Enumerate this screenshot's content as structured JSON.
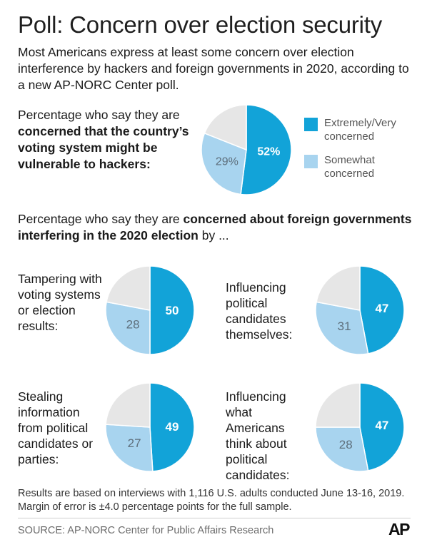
{
  "title": "Poll: Concern over election security",
  "subtitle": "Most Americans express at least some concern over election interference by hackers and foreign governments in 2020, according to a new AP-NORC Center poll.",
  "question1": {
    "intro": "Percentage who say they are ",
    "bold": "concerned that the country’s voting system might be vulnerable to hackers:"
  },
  "legend": [
    {
      "label": "Extremely/Very concerned",
      "color": "#12a3d8"
    },
    {
      "label": "Somewhat concerned",
      "color": "#a8d4ef"
    }
  ],
  "section2": {
    "intro": "Percentage who say they are ",
    "bold": "concerned about foreign governments interfering in the 2020 election",
    "suffix": " by ..."
  },
  "sublabels": [
    "Tampering with voting systems or election results:",
    "Influencing political candidates themselves:",
    "Stealing information from political candidates or parties:",
    "Influencing what Americans think about political candidates:"
  ],
  "chart_data": [
    {
      "type": "pie",
      "title": "Concerned that the country’s voting system might be vulnerable to hackers",
      "series": [
        {
          "name": "Extremely/Very concerned",
          "value": 52,
          "label": "52%"
        },
        {
          "name": "Somewhat concerned",
          "value": 29,
          "label": "29%"
        }
      ]
    },
    {
      "type": "pie",
      "title": "Tampering with voting systems or election results",
      "series": [
        {
          "name": "Extremely/Very concerned",
          "value": 50,
          "label": "50"
        },
        {
          "name": "Somewhat concerned",
          "value": 28,
          "label": "28"
        }
      ]
    },
    {
      "type": "pie",
      "title": "Influencing political candidates themselves",
      "series": [
        {
          "name": "Extremely/Very concerned",
          "value": 47,
          "label": "47"
        },
        {
          "name": "Somewhat concerned",
          "value": 31,
          "label": "31"
        }
      ]
    },
    {
      "type": "pie",
      "title": "Stealing information from political candidates or parties",
      "series": [
        {
          "name": "Extremely/Very concerned",
          "value": 49,
          "label": "49"
        },
        {
          "name": "Somewhat concerned",
          "value": 27,
          "label": "27"
        }
      ]
    },
    {
      "type": "pie",
      "title": "Influencing what Americans think about political candidates",
      "series": [
        {
          "name": "Extremely/Very concerned",
          "value": 47,
          "label": "47"
        },
        {
          "name": "Somewhat concerned",
          "value": 28,
          "label": "28"
        }
      ]
    }
  ],
  "colors": {
    "very": "#12a3d8",
    "somewhat": "#a8d4ef",
    "rest": "#e6e6e6"
  },
  "note": "Results are based on interviews with 1,116 U.S. adults conducted June 13-16, 2019. Margin of error is ±4.0 percentage points for the full sample.",
  "source": "SOURCE: AP-NORC Center for Public Affairs Research",
  "logo": "AP"
}
